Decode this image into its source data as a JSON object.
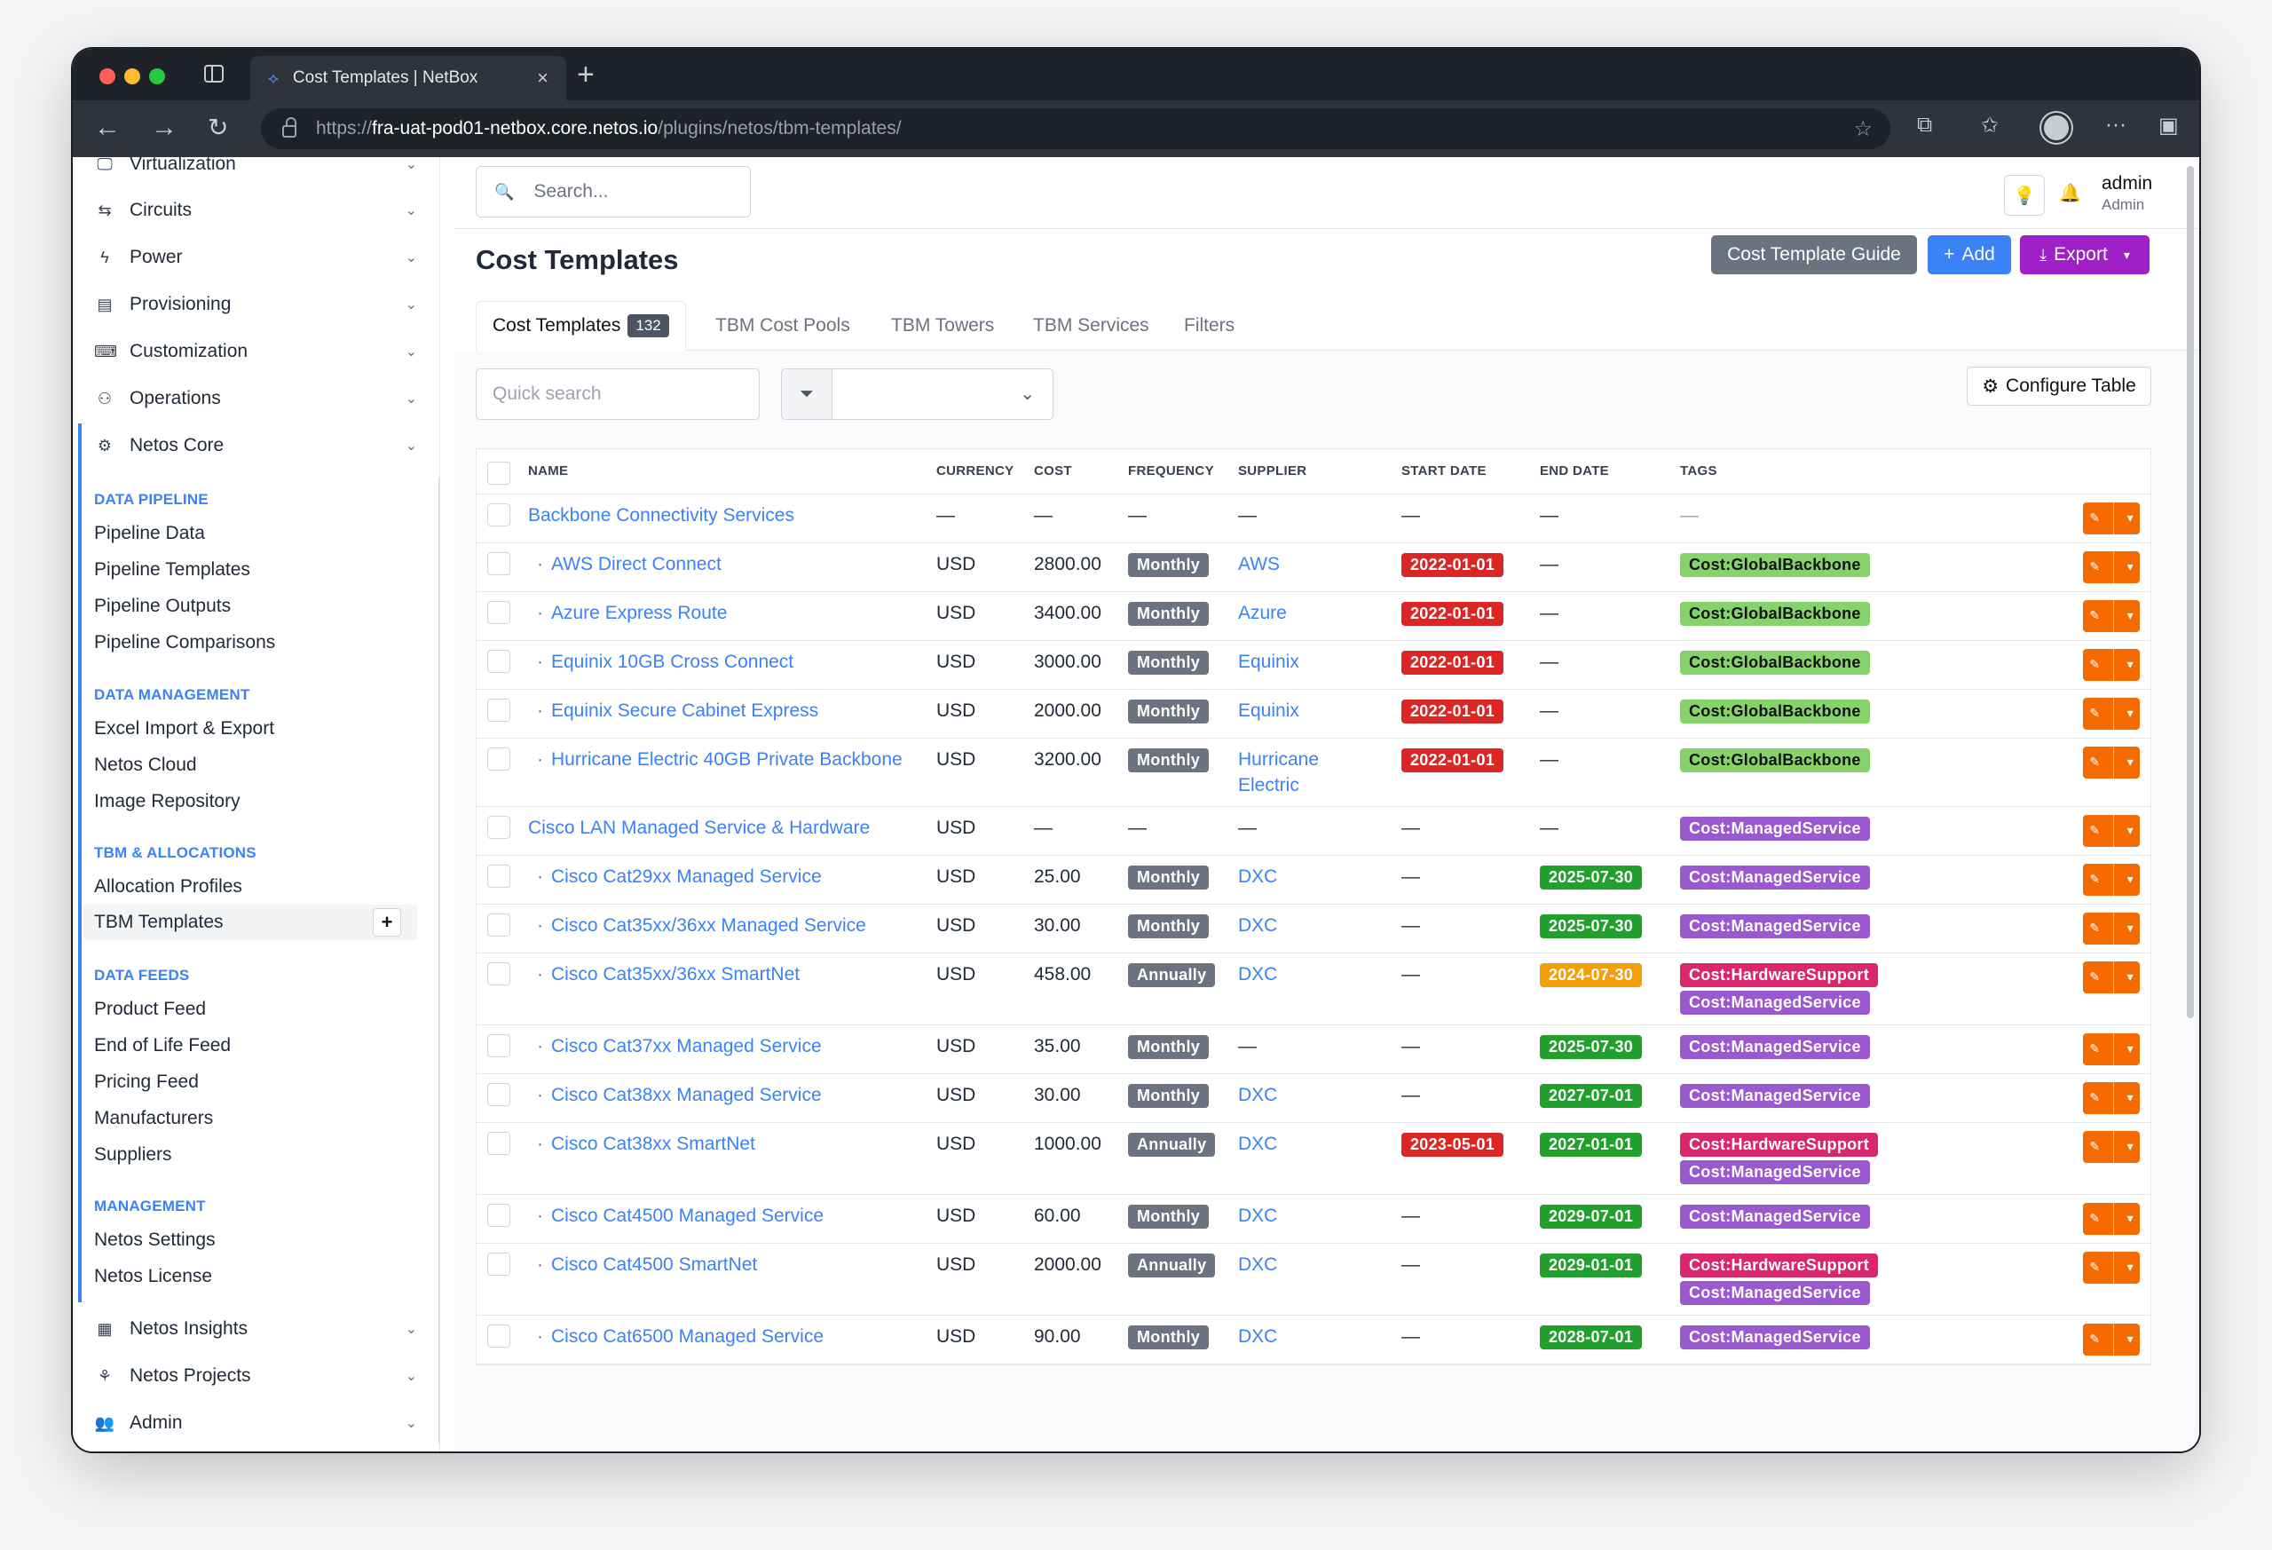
{
  "browser": {
    "tab_title": "Cost Templates | NetBox",
    "url_prefix": "https://",
    "url_host": "fra-uat-pod01-netbox.core.netos.io",
    "url_path": "/plugins/netos/tbm-templates/"
  },
  "sidebar": {
    "menus_top": [
      {
        "label": "Virtualization",
        "icon": "monitor-icon"
      },
      {
        "label": "Circuits",
        "icon": "circuits-icon"
      },
      {
        "label": "Power",
        "icon": "bolt-icon"
      },
      {
        "label": "Provisioning",
        "icon": "provisioning-icon"
      },
      {
        "label": "Customization",
        "icon": "customization-icon"
      },
      {
        "label": "Operations",
        "icon": "operations-icon"
      },
      {
        "label": "Netos Core",
        "icon": "gear-icon"
      }
    ],
    "sections": {
      "data_pipeline": {
        "heading": "DATA PIPELINE",
        "items": [
          "Pipeline Data",
          "Pipeline Templates",
          "Pipeline Outputs",
          "Pipeline Comparisons"
        ]
      },
      "data_management": {
        "heading": "DATA MANAGEMENT",
        "items": [
          "Excel Import & Export",
          "Netos Cloud",
          "Image Repository"
        ]
      },
      "tbm": {
        "heading": "TBM & ALLOCATIONS",
        "items": [
          "Allocation Profiles",
          "TBM Templates"
        ]
      },
      "data_feeds": {
        "heading": "DATA FEEDS",
        "items": [
          "Product Feed",
          "End of Life Feed",
          "Pricing Feed",
          "Manufacturers",
          "Suppliers"
        ]
      },
      "management": {
        "heading": "MANAGEMENT",
        "items": [
          "Netos Settings",
          "Netos License"
        ]
      }
    },
    "menus_bottom": [
      {
        "label": "Netos Insights",
        "icon": "insights-icon"
      },
      {
        "label": "Netos Projects",
        "icon": "projects-icon"
      },
      {
        "label": "Admin",
        "icon": "users-icon"
      }
    ]
  },
  "header": {
    "search_placeholder": "Search...",
    "user_name": "admin",
    "user_role": "Admin"
  },
  "page": {
    "title": "Cost Templates",
    "guide_btn": "Cost Template Guide",
    "add_btn": "Add",
    "export_btn": "Export",
    "tabs": [
      "Cost Templates",
      "TBM Cost Pools",
      "TBM Towers",
      "TBM Services",
      "Filters"
    ],
    "count": "132",
    "quick_search_placeholder": "Quick search",
    "configure_btn": "Configure Table"
  },
  "table": {
    "columns": [
      "NAME",
      "CURRENCY",
      "COST",
      "FREQUENCY",
      "SUPPLIER",
      "START DATE",
      "END DATE",
      "TAGS"
    ],
    "rows": [
      {
        "name": "Backbone Connectivity Services",
        "child": false,
        "currency": "—",
        "cost": "—",
        "freq": "",
        "supplier": "",
        "start": "",
        "start_color": "",
        "end": "",
        "end_color": "",
        "tags": [],
        "empty": true
      },
      {
        "name": "AWS Direct Connect",
        "child": true,
        "currency": "USD",
        "cost": "2800.00",
        "freq": "Monthly",
        "supplier": "AWS",
        "start": "2022-01-01",
        "start_color": "red",
        "end": "",
        "end_color": "",
        "tags": [
          "Cost:GlobalBackbone"
        ]
      },
      {
        "name": "Azure Express Route",
        "child": true,
        "currency": "USD",
        "cost": "3400.00",
        "freq": "Monthly",
        "supplier": "Azure",
        "start": "2022-01-01",
        "start_color": "red",
        "end": "",
        "end_color": "",
        "tags": [
          "Cost:GlobalBackbone"
        ]
      },
      {
        "name": "Equinix 10GB Cross Connect",
        "child": true,
        "currency": "USD",
        "cost": "3000.00",
        "freq": "Monthly",
        "supplier": "Equinix",
        "start": "2022-01-01",
        "start_color": "red",
        "end": "",
        "end_color": "",
        "tags": [
          "Cost:GlobalBackbone"
        ]
      },
      {
        "name": "Equinix Secure Cabinet Express",
        "child": true,
        "currency": "USD",
        "cost": "2000.00",
        "freq": "Monthly",
        "supplier": "Equinix",
        "start": "2022-01-01",
        "start_color": "red",
        "end": "",
        "end_color": "",
        "tags": [
          "Cost:GlobalBackbone"
        ]
      },
      {
        "name": "Hurricane Electric 40GB Private Backbone",
        "child": true,
        "currency": "USD",
        "cost": "3200.00",
        "freq": "Monthly",
        "supplier": "Hurricane Electric",
        "start": "2022-01-01",
        "start_color": "red",
        "end": "",
        "end_color": "",
        "tags": [
          "Cost:GlobalBackbone"
        ]
      },
      {
        "name": "Cisco LAN Managed Service & Hardware",
        "child": false,
        "currency": "USD",
        "cost": "—",
        "freq": "",
        "supplier": "",
        "start": "",
        "start_color": "",
        "end": "",
        "end_color": "",
        "tags": [
          "Cost:ManagedService"
        ]
      },
      {
        "name": "Cisco Cat29xx Managed Service",
        "child": true,
        "currency": "USD",
        "cost": "25.00",
        "freq": "Monthly",
        "supplier": "DXC",
        "start": "",
        "start_color": "",
        "end": "2025-07-30",
        "end_color": "green",
        "tags": [
          "Cost:ManagedService"
        ]
      },
      {
        "name": "Cisco Cat35xx/36xx Managed Service",
        "child": true,
        "currency": "USD",
        "cost": "30.00",
        "freq": "Monthly",
        "supplier": "DXC",
        "start": "",
        "start_color": "",
        "end": "2025-07-30",
        "end_color": "green",
        "tags": [
          "Cost:ManagedService"
        ]
      },
      {
        "name": "Cisco Cat35xx/36xx SmartNet",
        "child": true,
        "currency": "USD",
        "cost": "458.00",
        "freq": "Annually",
        "supplier": "DXC",
        "start": "",
        "start_color": "",
        "end": "2024-07-30",
        "end_color": "orange",
        "tags": [
          "Cost:HardwareSupport",
          "Cost:ManagedService"
        ]
      },
      {
        "name": "Cisco Cat37xx Managed Service",
        "child": true,
        "currency": "USD",
        "cost": "35.00",
        "freq": "Monthly",
        "supplier": "",
        "start": "",
        "start_color": "",
        "end": "2025-07-30",
        "end_color": "green",
        "tags": [
          "Cost:ManagedService"
        ]
      },
      {
        "name": "Cisco Cat38xx Managed Service",
        "child": true,
        "currency": "USD",
        "cost": "30.00",
        "freq": "Monthly",
        "supplier": "DXC",
        "start": "",
        "start_color": "",
        "end": "2027-07-01",
        "end_color": "green",
        "tags": [
          "Cost:ManagedService"
        ]
      },
      {
        "name": "Cisco Cat38xx SmartNet",
        "child": true,
        "currency": "USD",
        "cost": "1000.00",
        "freq": "Annually",
        "supplier": "DXC",
        "start": "2023-05-01",
        "start_color": "red",
        "end": "2027-01-01",
        "end_color": "green",
        "tags": [
          "Cost:HardwareSupport",
          "Cost:ManagedService"
        ]
      },
      {
        "name": "Cisco Cat4500 Managed Service",
        "child": true,
        "currency": "USD",
        "cost": "60.00",
        "freq": "Monthly",
        "supplier": "DXC",
        "start": "",
        "start_color": "",
        "end": "2029-07-01",
        "end_color": "green",
        "tags": [
          "Cost:ManagedService"
        ]
      },
      {
        "name": "Cisco Cat4500 SmartNet",
        "child": true,
        "currency": "USD",
        "cost": "2000.00",
        "freq": "Annually",
        "supplier": "DXC",
        "start": "",
        "start_color": "",
        "end": "2029-01-01",
        "end_color": "green",
        "tags": [
          "Cost:HardwareSupport",
          "Cost:ManagedService"
        ]
      },
      {
        "name": "Cisco Cat6500 Managed Service",
        "child": true,
        "currency": "USD",
        "cost": "90.00",
        "freq": "Monthly",
        "supplier": "DXC",
        "start": "",
        "start_color": "",
        "end": "2028-07-01",
        "end_color": "green",
        "tags": [
          "Cost:ManagedService"
        ]
      }
    ]
  }
}
